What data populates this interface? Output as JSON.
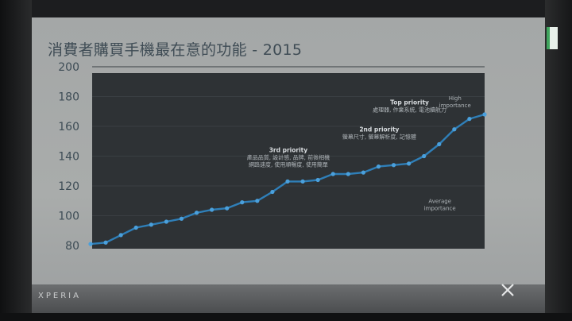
{
  "slide": {
    "title": "消費者購買手機最在意的功能 - 2015",
    "brand": "XPERIA",
    "logo_icon": "x-logo-icon"
  },
  "colors": {
    "slide_bg": "#a8abab",
    "plot_bg": "#2e3235",
    "line": "#2f7fb8",
    "axis_text": "#3e4d56"
  },
  "chart_data": {
    "type": "line",
    "title": "消費者購買手機最在意的功能 - 2015",
    "xlabel": "",
    "ylabel": "",
    "ylim": [
      80,
      200
    ],
    "yticks": [
      80,
      100,
      120,
      140,
      160,
      180,
      200
    ],
    "grid": true,
    "series": [
      {
        "name": "",
        "values": [
          81,
          82,
          87,
          92,
          94,
          96,
          98,
          102,
          104,
          105,
          109,
          110,
          116,
          123,
          123,
          124,
          128,
          128,
          129,
          133,
          134,
          135,
          140,
          148,
          158,
          165,
          168
        ]
      }
    ],
    "annotations": [
      {
        "title": "Top priority",
        "text": "處理器, 作業系統, 電池續航力",
        "x_index": 20,
        "y": 165
      },
      {
        "title": "2nd priority",
        "text": "螢幕尺寸, 螢幕解析度, 記憶體",
        "x_index": 18,
        "y": 147
      },
      {
        "title": "3rd priority",
        "text": "產品品質, 設計感, 品牌, 前後相機\n網路速度, 使用順暢度, 使用簡單",
        "x_index": 12,
        "y": 133
      },
      {
        "title": "",
        "text": "High\nimportance",
        "x_index": 23,
        "y": 168
      },
      {
        "title": "",
        "text": "Average\nimportance",
        "x_index": 22,
        "y": 99
      }
    ]
  }
}
